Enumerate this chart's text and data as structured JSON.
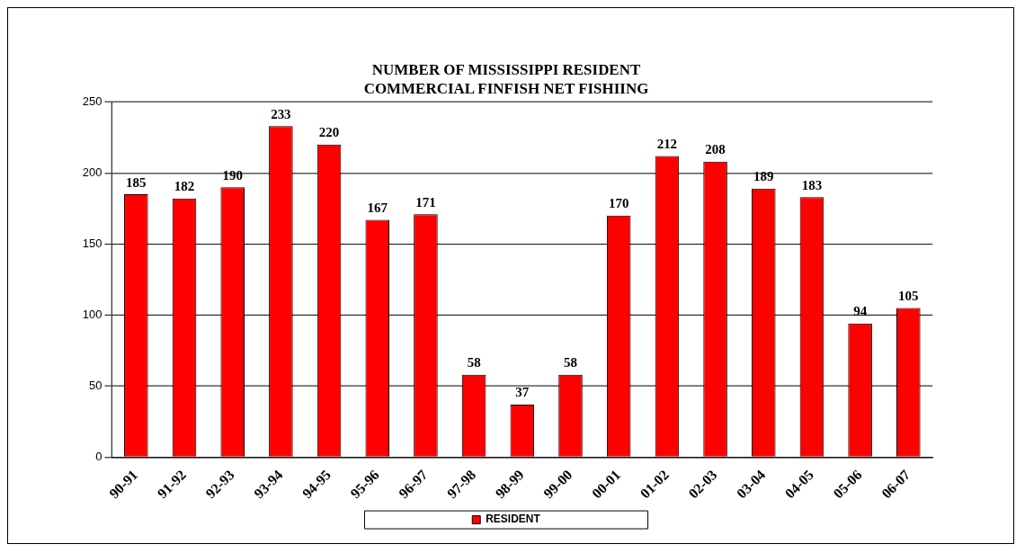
{
  "chart_data": {
    "type": "bar",
    "title": "NUMBER OF MISSISSIPPI RESIDENT\nCOMMERCIAL FINFISH NET FISHIING",
    "categories": [
      "90-91",
      "91-92",
      "92-93",
      "93-94",
      "94-95",
      "95-96",
      "96-97",
      "97-98",
      "98-99",
      "99-00",
      "00-01",
      "01-02",
      "02-03",
      "03-04",
      "04-05",
      "05-06",
      "06-07"
    ],
    "series": [
      {
        "name": "RESIDENT",
        "color": "#ff0000",
        "values": [
          185,
          182,
          190,
          233,
          220,
          167,
          171,
          58,
          37,
          58,
          170,
          212,
          208,
          189,
          183,
          94,
          105
        ]
      }
    ],
    "ylim": [
      0,
      250
    ],
    "yticks": [
      0,
      50,
      100,
      150,
      200,
      250
    ],
    "grid": "y",
    "legend": "bottom",
    "data_labels": true
  }
}
